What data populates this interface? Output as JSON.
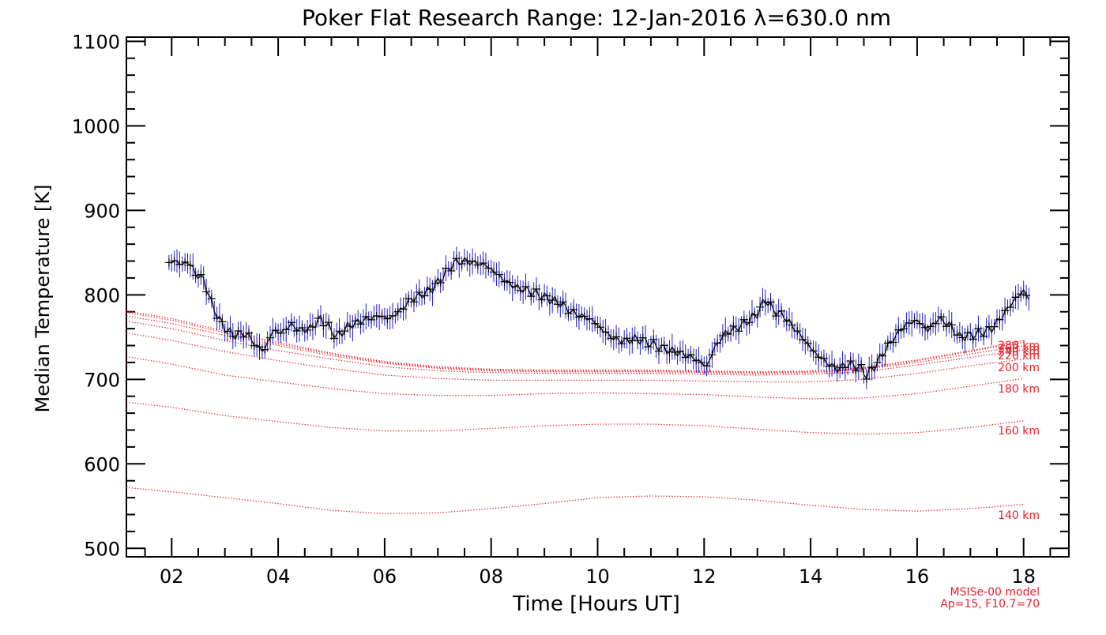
{
  "chart_data": {
    "type": "line",
    "title": "Poker Flat Research Range: 12-Jan-2016 λ=630.0 nm",
    "xlabel": "Time [Hours UT]",
    "ylabel": "Median Temperature [K]",
    "xlim": [
      1.15,
      18.85
    ],
    "ylim": [
      490,
      1105
    ],
    "x_ticks": [
      2,
      4,
      6,
      8,
      10,
      12,
      14,
      16,
      18
    ],
    "x_tick_labels": [
      "02",
      "04",
      "06",
      "08",
      "10",
      "12",
      "14",
      "16",
      "18"
    ],
    "y_ticks": [
      500,
      600,
      700,
      800,
      900,
      1000,
      1100
    ],
    "y_tick_labels": [
      "500",
      "600",
      "700",
      "800",
      "900",
      "1000",
      "1100"
    ],
    "grid": false,
    "colors": {
      "measurement": "#000000",
      "error_bar": "#1f1fd6",
      "model": "#e8202a"
    },
    "series": [
      {
        "role": "measured",
        "x": [
          1.95,
          2.1,
          2.2,
          2.3,
          2.45,
          2.6,
          2.75,
          2.9,
          3.05,
          3.2,
          3.35,
          3.5,
          3.6,
          3.75,
          3.9,
          4.05,
          4.25,
          4.4,
          4.6,
          4.8,
          5.0,
          5.1,
          5.3,
          5.5,
          5.7,
          5.9,
          6.1,
          6.3,
          6.5,
          6.7,
          6.9,
          7.1,
          7.3,
          7.5,
          7.7,
          7.9,
          8.1,
          8.3,
          8.5,
          8.7,
          8.9,
          9.1,
          9.3,
          9.5,
          9.7,
          9.9,
          10.1,
          10.3,
          10.5,
          10.7,
          10.9,
          11.1,
          11.3,
          11.5,
          11.7,
          11.9,
          12.05,
          12.2,
          12.4,
          12.6,
          12.8,
          13.0,
          13.15,
          13.3,
          13.5,
          13.7,
          13.9,
          14.1,
          14.3,
          14.5,
          14.7,
          14.9,
          15.05,
          15.2,
          15.4,
          15.6,
          15.8,
          16.0,
          16.2,
          16.4,
          16.6,
          16.8,
          17.0,
          17.2,
          17.4,
          17.6,
          17.8,
          18.0,
          18.1
        ],
        "y": [
          838,
          840,
          835,
          840,
          825,
          818,
          790,
          770,
          757,
          752,
          755,
          748,
          738,
          735,
          758,
          755,
          765,
          758,
          760,
          772,
          758,
          750,
          762,
          768,
          772,
          775,
          772,
          782,
          795,
          800,
          808,
          822,
          838,
          840,
          838,
          835,
          825,
          815,
          808,
          805,
          800,
          795,
          790,
          780,
          775,
          770,
          758,
          748,
          745,
          748,
          745,
          740,
          735,
          732,
          728,
          722,
          715,
          738,
          755,
          760,
          768,
          778,
          795,
          782,
          775,
          760,
          745,
          730,
          720,
          712,
          718,
          715,
          705,
          715,
          735,
          752,
          765,
          770,
          758,
          772,
          765,
          750,
          752,
          755,
          760,
          775,
          792,
          805,
          795
        ]
      },
      {
        "name": "140 km",
        "x": [
          1.15,
          2,
          3,
          4,
          5,
          6,
          7,
          8,
          9,
          10,
          11,
          12,
          13,
          14,
          15,
          16,
          17,
          18
        ],
        "y": [
          572,
          567,
          560,
          553,
          545,
          541,
          542,
          547,
          553,
          560,
          562,
          561,
          557,
          551,
          546,
          544,
          547,
          552
        ]
      },
      {
        "name": "160 km",
        "x": [
          1.15,
          2,
          3,
          4,
          5,
          6,
          7,
          8,
          9,
          10,
          11,
          12,
          13,
          14,
          15,
          16,
          17,
          18
        ],
        "y": [
          673,
          667,
          657,
          650,
          643,
          639,
          639,
          642,
          645,
          647,
          647,
          645,
          641,
          637,
          635,
          637,
          643,
          651
        ]
      },
      {
        "name": "180 km",
        "x": [
          1.15,
          2,
          3,
          4,
          5,
          6,
          7,
          8,
          9,
          10,
          11,
          12,
          13,
          14,
          15,
          16,
          17,
          18
        ],
        "y": [
          727,
          718,
          705,
          697,
          689,
          683,
          681,
          681,
          683,
          684,
          683,
          682,
          679,
          677,
          678,
          683,
          692,
          701
        ]
      },
      {
        "name": "200 km",
        "x": [
          1.15,
          2,
          3,
          4,
          5,
          6,
          7,
          8,
          9,
          10,
          11,
          12,
          13,
          14,
          15,
          16,
          17,
          18
        ],
        "y": [
          755,
          746,
          733,
          722,
          713,
          705,
          701,
          699,
          699,
          699,
          699,
          698,
          697,
          697,
          700,
          707,
          716,
          724
        ]
      },
      {
        "name": "220 km",
        "x": [
          1.15,
          2,
          3,
          4,
          5,
          6,
          7,
          8,
          9,
          10,
          11,
          12,
          13,
          14,
          15,
          16,
          17,
          18
        ],
        "y": [
          769,
          760,
          746,
          734,
          724,
          715,
          710,
          708,
          707,
          707,
          707,
          706,
          705,
          706,
          709,
          717,
          726,
          735
        ]
      },
      {
        "name": "240 km",
        "x": [
          1.15,
          2,
          3,
          4,
          5,
          6,
          7,
          8,
          9,
          10,
          11,
          12,
          13,
          14,
          15,
          16,
          17,
          18
        ],
        "y": [
          775,
          766,
          752,
          740,
          728,
          719,
          713,
          710,
          709,
          709,
          709,
          708,
          707,
          708,
          712,
          720,
          730,
          740
        ]
      },
      {
        "name": "260 km",
        "x": [
          1.15,
          2,
          3,
          4,
          5,
          6,
          7,
          8,
          9,
          10,
          11,
          12,
          13,
          14,
          15,
          16,
          17,
          18
        ],
        "y": [
          779,
          770,
          755,
          742,
          730,
          720,
          714,
          711,
          710,
          710,
          710,
          709,
          708,
          709,
          713,
          722,
          733,
          744
        ]
      },
      {
        "name": "280 km",
        "x": [
          1.15,
          2,
          3,
          4,
          5,
          6,
          7,
          8,
          9,
          10,
          11,
          12,
          13,
          14,
          15,
          16,
          17,
          18
        ],
        "y": [
          781,
          772,
          757,
          744,
          731,
          721,
          715,
          712,
          711,
          711,
          711,
          710,
          709,
          710,
          714,
          723,
          734,
          746
        ]
      }
    ],
    "annotations": [
      "MSISe-00 model",
      "Ap=15, F10.7=70"
    ]
  }
}
